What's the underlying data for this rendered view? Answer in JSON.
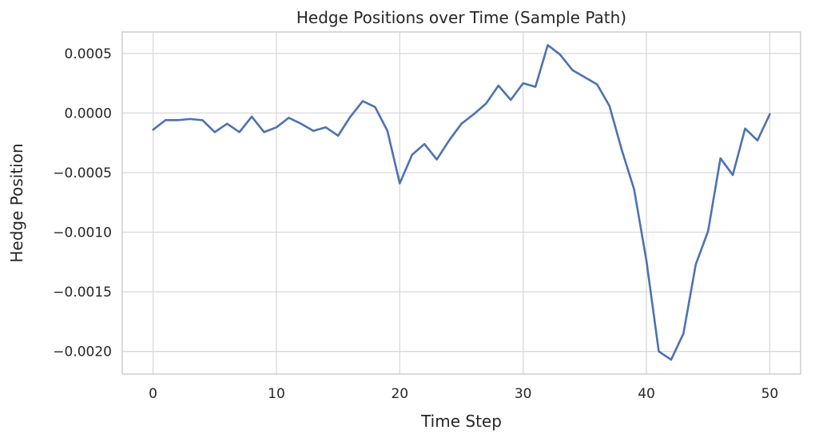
{
  "chart_data": {
    "type": "line",
    "title": "Hedge Positions over Time (Sample Path)",
    "xlabel": "Time Step",
    "ylabel": "Hedge Position",
    "xlim": [
      -2.5,
      52.5
    ],
    "ylim": [
      -0.00219,
      0.00068
    ],
    "x_ticks": [
      0,
      10,
      20,
      30,
      40,
      50
    ],
    "x_tick_labels": [
      "0",
      "10",
      "20",
      "30",
      "40",
      "50"
    ],
    "y_ticks": [
      0.0005,
      0.0,
      -0.0005,
      -0.001,
      -0.0015,
      -0.002
    ],
    "y_tick_labels": [
      "0.0005",
      "0.0000",
      "−0.0005",
      "−0.0010",
      "−0.0015",
      "−0.0020"
    ],
    "grid": true,
    "legend": "none",
    "line_color": "#4c72b0",
    "series": [
      {
        "x": [
          0,
          1,
          2,
          3,
          4,
          5,
          6,
          7,
          8,
          9,
          10,
          11,
          12,
          13,
          14,
          15,
          16,
          17,
          18,
          19,
          20,
          21,
          22,
          23,
          24,
          25,
          26,
          27,
          28,
          29,
          30,
          31,
          32,
          33,
          34,
          35,
          36,
          37,
          38,
          39,
          40,
          41,
          42,
          43,
          44,
          45,
          46,
          47,
          48,
          49,
          50
        ],
        "values": [
          -0.00014,
          -6e-05,
          -6e-05,
          -5e-05,
          -6e-05,
          -0.00016,
          -9e-05,
          -0.00016,
          -3e-05,
          -0.00016,
          -0.00012,
          -4e-05,
          -9e-05,
          -0.00015,
          -0.00012,
          -0.00019,
          -3e-05,
          0.0001,
          5e-05,
          -0.00015,
          -0.00059,
          -0.00035,
          -0.00026,
          -0.00039,
          -0.00023,
          -9e-05,
          -1e-05,
          8e-05,
          0.00023,
          0.00011,
          0.00025,
          0.00022,
          0.00057,
          0.00049,
          0.00036,
          0.0003,
          0.00024,
          6e-05,
          -0.00031,
          -0.00064,
          -0.00124,
          -0.002,
          -0.00207,
          -0.00185,
          -0.00127,
          -0.00099,
          -0.00038,
          -0.00052,
          -0.00013,
          -0.00023,
          -1e-05
        ]
      }
    ]
  }
}
